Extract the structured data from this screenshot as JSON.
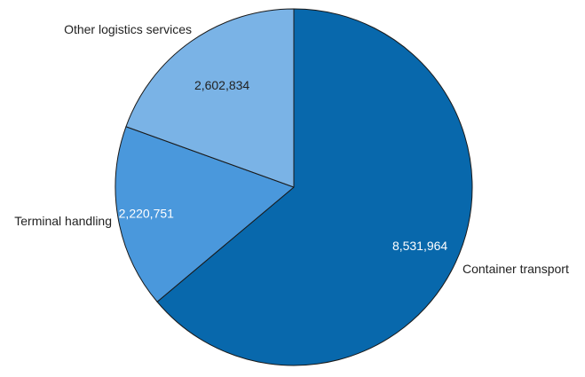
{
  "chart_data": {
    "type": "pie",
    "title": "",
    "categories": [
      "Container transport",
      "Terminal handling",
      "Other logistics services"
    ],
    "values": [
      8531964,
      2220751,
      2602834
    ],
    "value_labels": [
      "8,531,964",
      "2,220,751",
      "2,602,834"
    ],
    "colors": [
      "#0868ac",
      "#4a98dc",
      "#7ab3e6"
    ],
    "value_label_colors": [
      "#ffffff",
      "#ffffff",
      "#222222"
    ],
    "start_angle": "12 o'clock",
    "direction": "clockwise",
    "legend": "none"
  }
}
